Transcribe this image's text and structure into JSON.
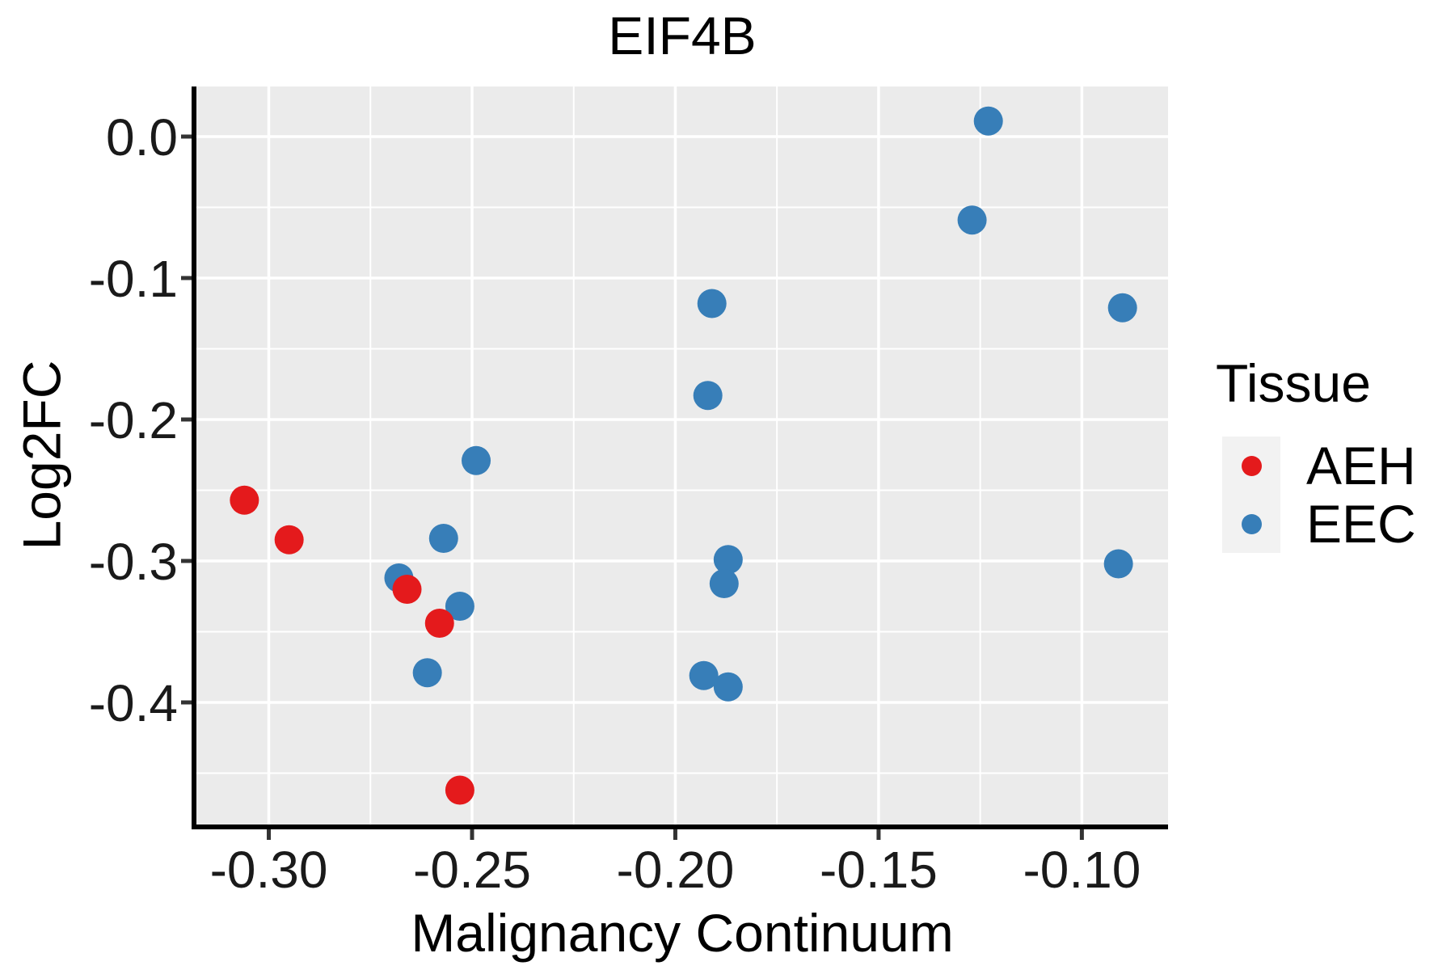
{
  "title": "EIF4B",
  "chart_data": {
    "type": "scatter",
    "title": "EIF4B",
    "xlabel": "Malignancy Continuum",
    "ylabel": "Log2FC",
    "xlim": [
      -0.3178,
      -0.0788
    ],
    "ylim": [
      -0.4863,
      0.0354
    ],
    "x_ticks": [
      -0.3,
      -0.25,
      -0.2,
      -0.15,
      -0.1
    ],
    "x_tick_labels": [
      "-0.30",
      "-0.25",
      "-0.20",
      "-0.15",
      "-0.10"
    ],
    "y_ticks": [
      0.0,
      -0.1,
      -0.2,
      -0.3,
      -0.4
    ],
    "y_tick_labels": [
      "0.0",
      "-0.1",
      "-0.2",
      "-0.3",
      "-0.4"
    ],
    "grid": "major+minor",
    "legend_position": "right",
    "point_radius_px": 18,
    "series": [
      {
        "name": "AEH",
        "color": "#E41A1C",
        "points": [
          [
            -0.306,
            -0.257
          ],
          [
            -0.295,
            -0.285
          ],
          [
            -0.266,
            -0.32
          ],
          [
            -0.258,
            -0.344
          ],
          [
            -0.253,
            -0.462
          ]
        ]
      },
      {
        "name": "EEC",
        "color": "#377EB8",
        "points": [
          [
            -0.249,
            -0.229
          ],
          [
            -0.257,
            -0.284
          ],
          [
            -0.268,
            -0.312
          ],
          [
            -0.253,
            -0.332
          ],
          [
            -0.261,
            -0.379
          ],
          [
            -0.191,
            -0.118
          ],
          [
            -0.192,
            -0.183
          ],
          [
            -0.187,
            -0.299
          ],
          [
            -0.188,
            -0.316
          ],
          [
            -0.193,
            -0.381
          ],
          [
            -0.187,
            -0.389
          ],
          [
            -0.123,
            0.011
          ],
          [
            -0.127,
            -0.059
          ],
          [
            -0.09,
            -0.121
          ],
          [
            -0.091,
            -0.302
          ]
        ]
      }
    ]
  },
  "legend": {
    "title": "Tissue",
    "items": [
      {
        "label": "AEH"
      },
      {
        "label": "EEC"
      }
    ]
  },
  "colors": {
    "background": "#FFFFFF",
    "panel_bg": "#EBEBEB",
    "grid": "#FFFFFF",
    "axis_line": "#000000",
    "tick_mark": "#333333",
    "tick_label": "#1A1A1A",
    "text": "#000000",
    "legend_key_bg": "#F2F2F2",
    "aeh": "#E41A1C",
    "eec": "#377EB8"
  }
}
